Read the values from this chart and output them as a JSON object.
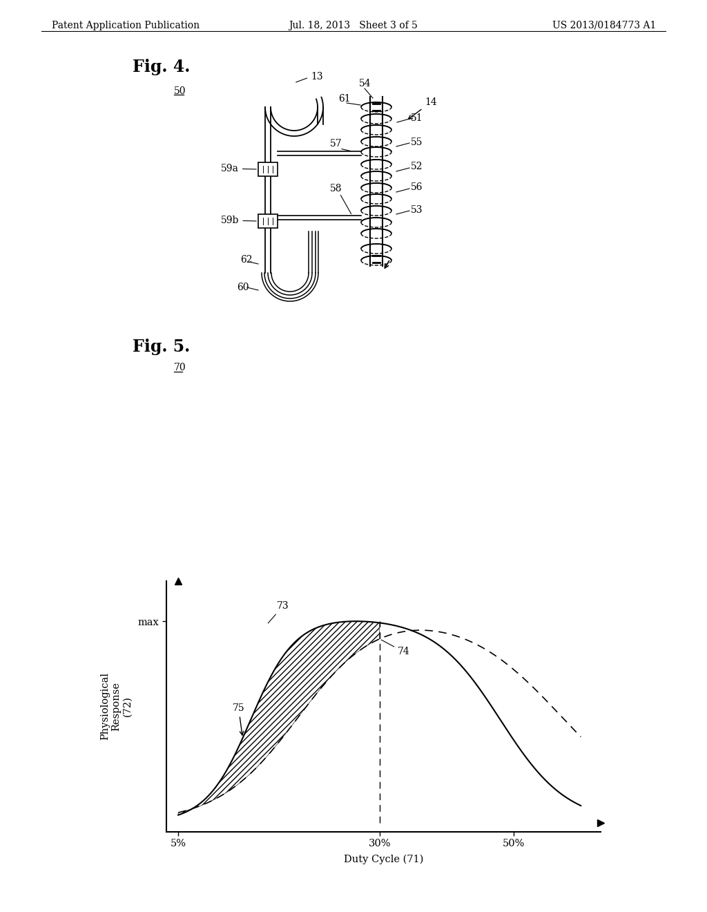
{
  "header_left": "Patent Application Publication",
  "header_center": "Jul. 18, 2013   Sheet 3 of 5",
  "header_right": "US 2013/0184773 A1",
  "bg_color": "#ffffff",
  "fig4_label": "Fig. 4.",
  "fig5_label": "Fig. 5.",
  "ref_50": "50",
  "ref_70": "70",
  "graph_xlabel": "Duty Cycle (71)",
  "graph_ylabel": "Physiological\nResponse\n(72)",
  "graph_ytick_max": "max",
  "graph_xtick_5": "5%",
  "graph_xtick_30": "30%",
  "graph_xtick_50": "50%"
}
